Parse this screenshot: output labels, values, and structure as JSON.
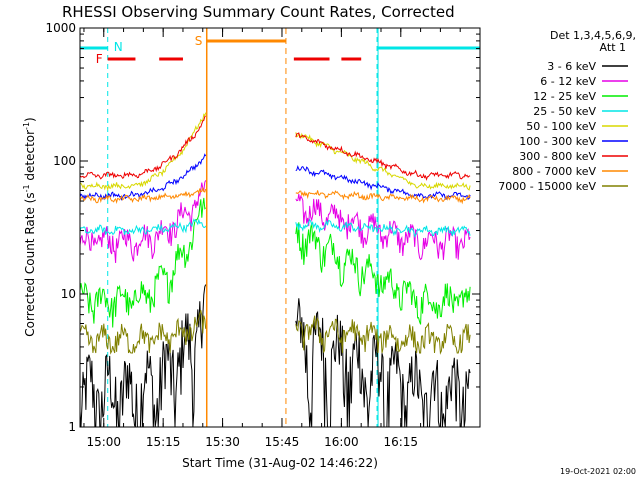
{
  "chart_data": {
    "type": "line",
    "title": "RHESSI Observing Summary Count Rates, Corrected",
    "xlabel": "Start Time (31-Aug-02 14:46:22)",
    "ylabel": "Corrected Count Rate (s",
    "ylabel_sup1": "-1",
    "ylabel_mid": " detector",
    "ylabel_sup2": "-1",
    "ylabel_end": ")",
    "yscale": "log",
    "xlim_minutes": [
      -6,
      95
    ],
    "ylim": [
      1,
      1000
    ],
    "x_ticks": [
      "15:00",
      "15:15",
      "15:30",
      "15:45",
      "16:00",
      "16:15"
    ],
    "x_tick_minutes": [
      0,
      15,
      30,
      45,
      60,
      75
    ],
    "y_ticks": [
      "1",
      "10",
      "100",
      "1000"
    ],
    "y_tick_values": [
      1,
      10,
      100,
      1000
    ],
    "legend_header": [
      "Det 1,3,4,5,6,9,",
      "Att 1"
    ],
    "legend_placement": "right",
    "flags": {
      "N_label": "N",
      "F_label": "F",
      "S_label": "S"
    },
    "night_intervals_minutes": [
      [
        -6,
        1
      ],
      [
        69,
        95
      ]
    ],
    "saa_interval_minutes": [
      26,
      46
    ],
    "flare_segments_minutes": [
      [
        1,
        8
      ],
      [
        14,
        20
      ],
      [
        48,
        57
      ],
      [
        60,
        65
      ]
    ],
    "timestamp": "19-Oct-2021 02:00",
    "series": [
      {
        "name": "3 - 6 keV",
        "color": "#000000",
        "base": 1.8,
        "peak": 7,
        "noisy": 0.35,
        "floor": 1
      },
      {
        "name": "6 - 12 keV",
        "color": "#e600e6",
        "base": 25,
        "peak": 60,
        "noisy": 0.1,
        "floor": 4
      },
      {
        "name": "12 - 25 keV",
        "color": "#00ee00",
        "base": 9,
        "peak": 50,
        "noisy": 0.12,
        "floor": 5
      },
      {
        "name": "25 - 50 keV",
        "color": "#00e6e6",
        "base": 30,
        "peak": 35,
        "noisy": 0.03,
        "floor": 28
      },
      {
        "name": "50 - 100 keV",
        "color": "#d8d800",
        "base": 65,
        "peak": 240,
        "noisy": 0.02,
        "floor": 60
      },
      {
        "name": "100 - 300 keV",
        "color": "#0000ff",
        "base": 55,
        "peak": 110,
        "noisy": 0.02,
        "floor": 50
      },
      {
        "name": "300 - 800 keV",
        "color": "#ee0000",
        "base": 78,
        "peak": 210,
        "noisy": 0.02,
        "floor": 70
      },
      {
        "name": "800 - 7000 keV",
        "color": "#ff8800",
        "base": 52,
        "peak": 60,
        "noisy": 0.02,
        "floor": 50
      },
      {
        "name": "7000 - 15000 keV",
        "color": "#808000",
        "base": 4.5,
        "peak": 6,
        "noisy": 0.1,
        "floor": 4
      }
    ]
  }
}
